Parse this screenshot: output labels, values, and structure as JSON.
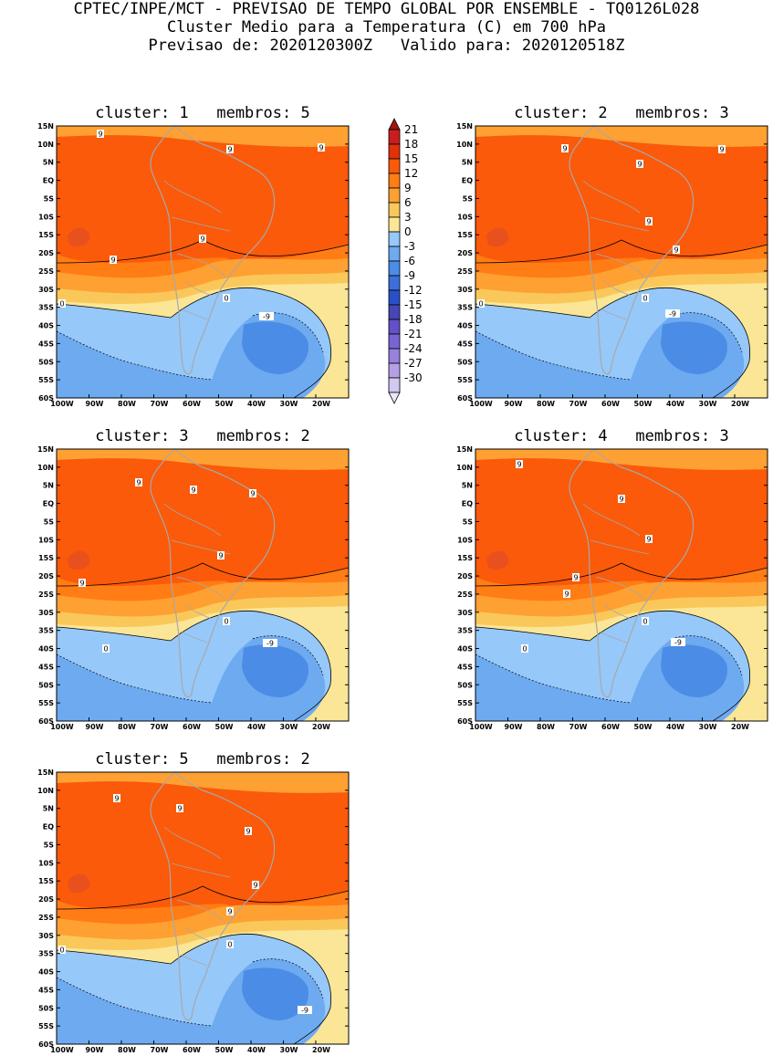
{
  "header": {
    "line1": "CPTEC/INPE/MCT - PREVISAO DE TEMPO GLOBAL POR ENSEMBLE - TQ0126L028",
    "line2": "Cluster Medio para a Temperatura (C) em 700 hPa",
    "line3": "Previsao de: 2020120300Z   Valido para: 2020120518Z"
  },
  "axes": {
    "lat_labels": [
      "15N",
      "10N",
      "5N",
      "EQ",
      "5S",
      "10S",
      "15S",
      "20S",
      "25S",
      "30S",
      "35S",
      "40S",
      "45S",
      "50S",
      "55S",
      "60S"
    ],
    "lon_labels": [
      "100W",
      "90W",
      "80W",
      "70W",
      "60W",
      "50W",
      "40W",
      "30W",
      "20W"
    ]
  },
  "legend": {
    "labels": [
      "21",
      "18",
      "15",
      "12",
      "9",
      "6",
      "3",
      "0",
      "-3",
      "-6",
      "-9",
      "-12",
      "-15",
      "-18",
      "-21",
      "-24",
      "-27",
      "-30"
    ],
    "colors": [
      "#a01414",
      "#c81e1e",
      "#e1320a",
      "#fa5a0a",
      "#ff7d14",
      "#ffa032",
      "#fac85a",
      "#fae696",
      "#96c8fa",
      "#6eaaf0",
      "#4b8ce6",
      "#3c6edc",
      "#2a50c8",
      "#4646b4",
      "#6450c8",
      "#7864d2",
      "#9682dc",
      "#b4a0e6",
      "#d2c8f0",
      "#ebe6fa"
    ]
  },
  "contour_labels": {
    "nine": "9",
    "zero": "0",
    "minus_nine": "-9"
  },
  "panels": [
    {
      "title": "cluster: 1   membros: 5"
    },
    {
      "title": "cluster: 2   membros: 3"
    },
    {
      "title": "cluster: 3   membros: 2"
    },
    {
      "title": "cluster: 4   membros: 3"
    },
    {
      "title": "cluster: 5   membros: 2"
    }
  ]
}
